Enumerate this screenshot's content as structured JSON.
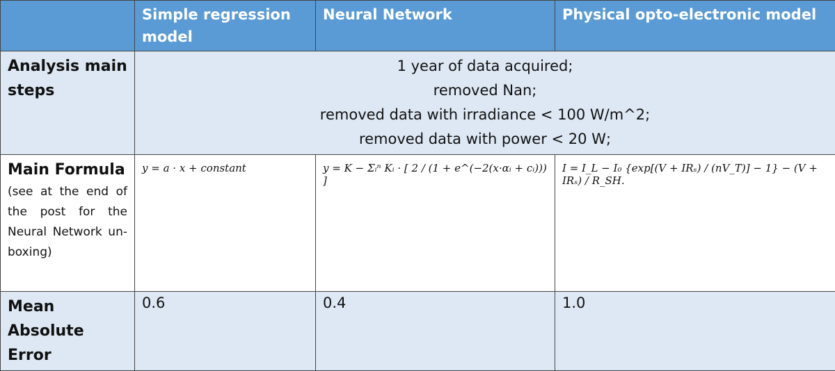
{
  "table": {
    "header": [
      "Simple regression model",
      "Neural Network",
      "Physical opto-electronic model"
    ],
    "rows": [
      {
        "label": "Analysis main steps",
        "steps": [
          "1 year of data acquired;",
          "removed Nan;",
          "removed data with irradiance < 100 W/m^2;",
          "removed data with power < 20 W;"
        ]
      },
      {
        "label": "Main Formula",
        "note": "(see at the end of the post for the Neural Network un-boxing)",
        "cells": [
          "y = a · x + constant",
          "y = K − Σᵢⁿ Kᵢ · [ 2 / (1 + e^(−2(x·αᵢ + cᵢ))) ]",
          "I = I_L − I₀ {exp[(V + IRₛ) / (nV_T)] − 1} − (V + IRₛ) / R_SH."
        ]
      },
      {
        "label": "Mean Absolute Error",
        "cells": [
          "0.6",
          "0.4",
          "1.0"
        ]
      }
    ]
  }
}
